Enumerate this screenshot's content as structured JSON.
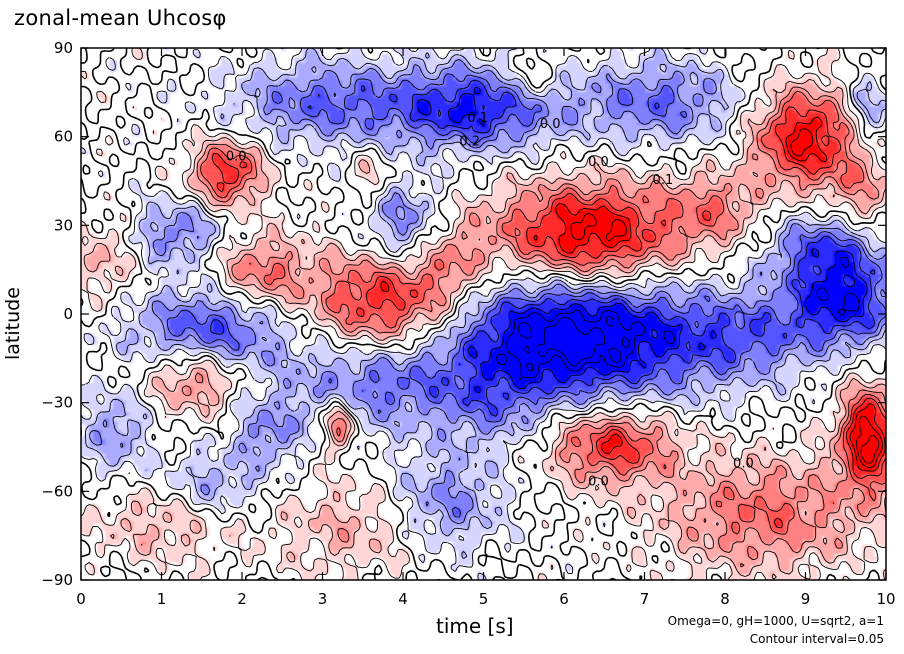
{
  "chart_data": {
    "type": "heatmap",
    "title": "zonal-mean Uhcosφ",
    "xlabel": "time [s]",
    "ylabel": "latitude",
    "xlim": [
      0,
      10
    ],
    "ylim": [
      -90,
      90
    ],
    "x_ticks": [
      0,
      1,
      2,
      3,
      4,
      5,
      6,
      7,
      8,
      9,
      10
    ],
    "x_tick_labels": [
      "0",
      "1",
      "2",
      "3",
      "4",
      "5",
      "6",
      "7",
      "8",
      "9",
      "10"
    ],
    "y_ticks": [
      -90,
      -60,
      -30,
      0,
      30,
      60,
      90
    ],
    "y_tick_labels": [
      "−90",
      "−60",
      "−30",
      "0",
      "30",
      "60",
      "90"
    ],
    "contour_interval": 0.05,
    "colors": {
      "positive": "#ff0000",
      "negative": "#0000ff",
      "zero": "#ffffff"
    },
    "grid": false,
    "notes": [
      "Omega=0, gH=1000, U=sqrt2, a=1",
      "Contour interval=0.05"
    ],
    "contour_labels": [
      {
        "text": "0.1",
        "x": 4.8,
        "y": 65
      },
      {
        "text": "0.2",
        "x": 4.7,
        "y": 57
      },
      {
        "text": "0.0",
        "x": 5.7,
        "y": 63
      },
      {
        "text": "0.0",
        "x": 6.3,
        "y": 50
      },
      {
        "text": "0.1",
        "x": 7.1,
        "y": 44
      },
      {
        "text": "0.0",
        "x": 1.8,
        "y": 52
      },
      {
        "text": "0.0",
        "x": 6.3,
        "y": -58
      },
      {
        "text": "0.0",
        "x": 8.1,
        "y": -52
      }
    ],
    "features": [
      {
        "x": 1.8,
        "y": 48,
        "value": 0.3,
        "sx": 0.32,
        "sy": 8
      },
      {
        "x": 3.8,
        "y": 3,
        "value": 0.35,
        "sx": 0.7,
        "sy": 13
      },
      {
        "x": 2.2,
        "y": 14,
        "value": 0.2,
        "sx": 0.4,
        "sy": 9
      },
      {
        "x": 4.6,
        "y": 18,
        "value": 0.12,
        "sx": 0.3,
        "sy": 10
      },
      {
        "x": 6.3,
        "y": 26,
        "value": 0.4,
        "sx": 0.85,
        "sy": 13
      },
      {
        "x": 7.9,
        "y": 36,
        "value": 0.15,
        "sx": 0.4,
        "sy": 9
      },
      {
        "x": 9.0,
        "y": 60,
        "value": 0.35,
        "sx": 0.45,
        "sy": 12
      },
      {
        "x": 9.7,
        "y": 40,
        "value": 0.15,
        "sx": 0.3,
        "sy": 10
      },
      {
        "x": 9.8,
        "y": -42,
        "value": 0.4,
        "sx": 0.25,
        "sy": 12
      },
      {
        "x": 6.6,
        "y": -44,
        "value": 0.3,
        "sx": 0.55,
        "sy": 9
      },
      {
        "x": 8.5,
        "y": -68,
        "value": 0.2,
        "sx": 0.9,
        "sy": 14
      },
      {
        "x": 3.2,
        "y": -37,
        "value": 0.3,
        "sx": 0.12,
        "sy": 6
      },
      {
        "x": 1.4,
        "y": -22,
        "value": 0.2,
        "sx": 0.4,
        "sy": 8
      },
      {
        "x": 3.5,
        "y": -72,
        "value": 0.12,
        "sx": 0.8,
        "sy": 12
      },
      {
        "x": 1.0,
        "y": -70,
        "value": 0.12,
        "sx": 0.6,
        "sy": 10
      },
      {
        "x": 5.6,
        "y": 80,
        "value": 0.12,
        "sx": 0.25,
        "sy": 6
      },
      {
        "x": 3.6,
        "y": 48,
        "value": 0.12,
        "sx": 0.15,
        "sy": 6
      },
      {
        "x": 0.3,
        "y": 18,
        "value": 0.12,
        "sx": 0.25,
        "sy": 10
      },
      {
        "x": 5.1,
        "y": -32,
        "value": -0.1,
        "sx": 0.45,
        "sy": 10
      },
      {
        "x": 6.1,
        "y": -7,
        "value": -0.45,
        "sx": 1.2,
        "sy": 16
      },
      {
        "x": 3.6,
        "y": -22,
        "value": -0.2,
        "sx": 0.8,
        "sy": 12
      },
      {
        "x": 1.6,
        "y": -5,
        "value": -0.25,
        "sx": 0.7,
        "sy": 10
      },
      {
        "x": 8.3,
        "y": -8,
        "value": -0.15,
        "sx": 0.6,
        "sy": 10
      },
      {
        "x": 9.5,
        "y": 3,
        "value": -0.3,
        "sx": 0.5,
        "sy": 10
      },
      {
        "x": 9.3,
        "y": 22,
        "value": -0.25,
        "sx": 0.5,
        "sy": 9
      },
      {
        "x": 4.9,
        "y": 70,
        "value": -0.3,
        "sx": 0.75,
        "sy": 10
      },
      {
        "x": 3.0,
        "y": 72,
        "value": -0.2,
        "sx": 0.8,
        "sy": 10
      },
      {
        "x": 7.2,
        "y": 72,
        "value": -0.2,
        "sx": 0.7,
        "sy": 10
      },
      {
        "x": 4.0,
        "y": 30,
        "value": -0.2,
        "sx": 0.35,
        "sy": 10
      },
      {
        "x": 1.2,
        "y": 28,
        "value": -0.18,
        "sx": 0.4,
        "sy": 8
      },
      {
        "x": 4.5,
        "y": -65,
        "value": -0.2,
        "sx": 0.5,
        "sy": 12
      },
      {
        "x": 1.6,
        "y": -58,
        "value": -0.15,
        "sx": 0.5,
        "sy": 8
      },
      {
        "x": 9.8,
        "y": 70,
        "value": -0.15,
        "sx": 0.2,
        "sy": 8
      },
      {
        "x": 2.3,
        "y": -40,
        "value": -0.15,
        "sx": 0.3,
        "sy": 8
      },
      {
        "x": 0.4,
        "y": -40,
        "value": -0.15,
        "sx": 0.3,
        "sy": 10
      }
    ]
  }
}
